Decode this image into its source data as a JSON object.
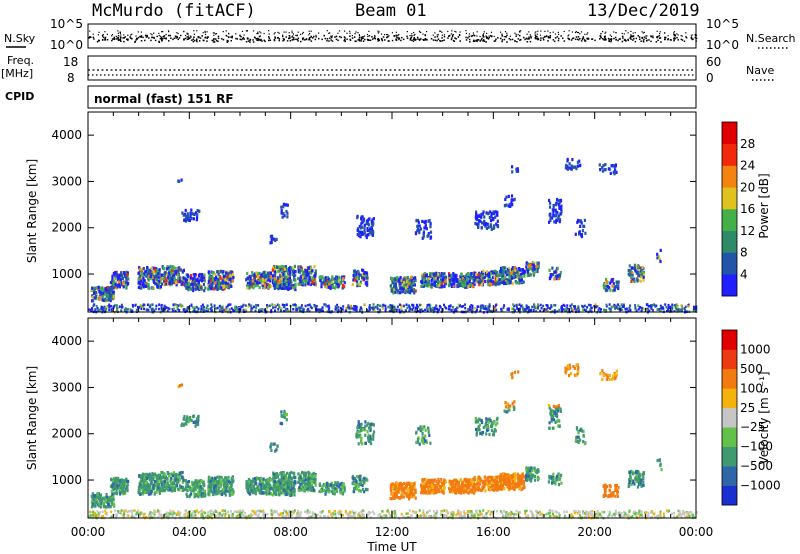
{
  "header": {
    "station": "McMurdo (fitACF)",
    "beam": "Beam 01",
    "date": "13/Dec/2019"
  },
  "params_panel": {
    "nsky_label": "N.Sky",
    "nsearch_label": "N.Search",
    "nsky_ticks": [
      "10^5",
      "10^0"
    ],
    "nsearch_ticks": [
      "10^5",
      "10^0"
    ],
    "freq_label": "Freq.",
    "freq_unit": "[MHz]",
    "freq_ticks": [
      "18",
      "8"
    ],
    "nave_label": "Nave",
    "nave_ticks": [
      "60",
      "0"
    ],
    "cpid_label": "CPID",
    "cpid_text": "normal (fast) 151 RF"
  },
  "chart_data": [
    {
      "type": "heatmap",
      "name": "power-panel",
      "ylabel": "Slant Range [km]",
      "yticks": [
        1000,
        2000,
        3000,
        4000
      ],
      "ylim": [
        180,
        4500
      ],
      "xlim_hours": [
        0,
        24
      ],
      "colorbar": {
        "title": "Power [dB]",
        "labels": [
          "4",
          "8",
          "12",
          "16",
          "20",
          "24",
          "28"
        ],
        "colors": [
          "#1f1fff",
          "#2255aa",
          "#2f8a6a",
          "#44b04a",
          "#e0c21e",
          "#f5830f",
          "#f02a0a",
          "#e00000"
        ]
      }
    },
    {
      "type": "heatmap",
      "name": "velocity-panel",
      "ylabel": "Slant Range [km]",
      "yticks": [
        1000,
        2000,
        3000,
        4000
      ],
      "ylim": [
        180,
        4500
      ],
      "xlim_hours": [
        0,
        24
      ],
      "xlabel": "Time UT",
      "xticks": [
        "00:00",
        "04:00",
        "08:00",
        "12:00",
        "16:00",
        "20:00",
        "00:00"
      ],
      "colorbar": {
        "title": "Velocity [m s⁻¹]",
        "labels": [
          "1000",
          "500",
          "100",
          "25",
          "−25",
          "−100",
          "−500",
          "−1000"
        ],
        "colors": [
          "#1a2fd0",
          "#2f66a8",
          "#3f9a70",
          "#63c14a",
          "#c6c6c6",
          "#f4b20c",
          "#f27a10",
          "#ee3a12",
          "#e00000"
        ]
      }
    }
  ]
}
